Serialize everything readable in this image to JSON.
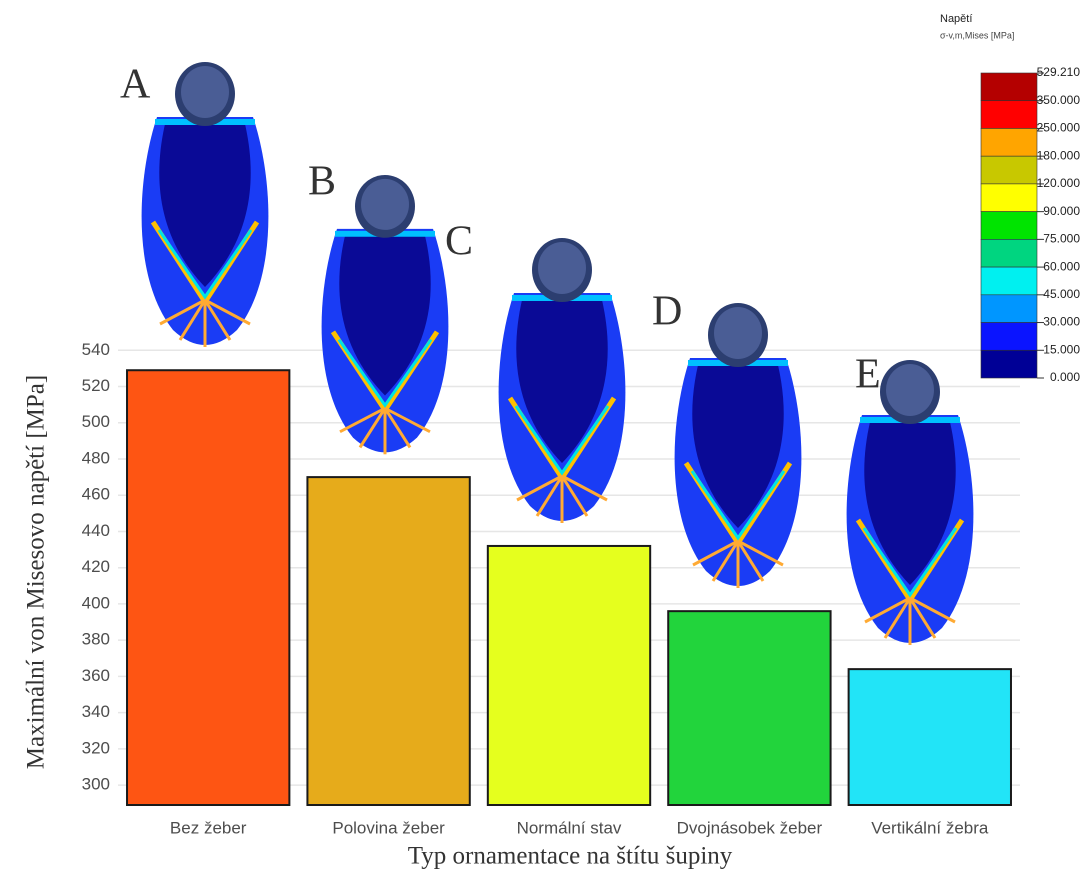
{
  "chart_data": {
    "type": "bar",
    "y_label": "Maximální von Misesovo napětí [MPa]",
    "x_label": "Typ ornamentace na štítu šupiny",
    "categories": [
      "Bez žeber",
      "Polovina žeber",
      "Normální stav",
      "Dvojnásobek žeber",
      "Vertikální žebra"
    ],
    "values": [
      529,
      470,
      432,
      396,
      364
    ],
    "colors": [
      "#fe5513",
      "#e6ab1b",
      "#e5ff1e",
      "#22d43c",
      "#22e4f7"
    ],
    "ylim": [
      289,
      549
    ],
    "yticks": [
      300,
      320,
      340,
      360,
      380,
      400,
      420,
      440,
      460,
      480,
      500,
      520,
      540
    ],
    "grid": true,
    "annotations": [
      "A",
      "B",
      "C",
      "D",
      "E"
    ],
    "legend": {
      "title": "Napětí",
      "subtitle": "σ-v,m,Mises [MPa]",
      "labels": [
        "529.210",
        "350.000",
        "250.000",
        "180.000",
        "120.000",
        "90.000",
        "75.000",
        "60.000",
        "45.000",
        "30.000",
        "15.000",
        "0.000"
      ],
      "colors": [
        "#b40000",
        "#ff0000",
        "#ffa500",
        "#c8c800",
        "#ffff00",
        "#00e400",
        "#00d580",
        "#00f0f0",
        "#0096ff",
        "#0a14ff",
        "#000096"
      ]
    }
  }
}
